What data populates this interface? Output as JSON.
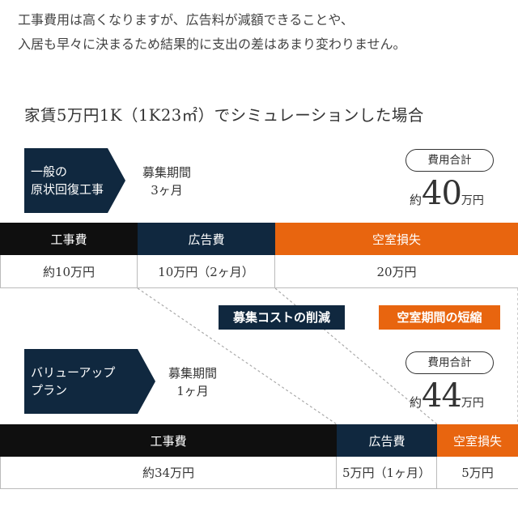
{
  "intro": {
    "line1": "工事費用は高くなりますが、広告料が減額できることや、",
    "line2": "入居も早々に決まるため結果的に支出の差はあまり変わりません。"
  },
  "simulation_title": "家賃5万円1K（1K23㎡）でシミュレーションした場合",
  "plan_general": {
    "label_line1": "一般の",
    "label_line2": "原状回復工事",
    "period_line1": "募集期間",
    "period_line2": "3ヶ月",
    "total_label": "費用合計",
    "total_prefix": "約",
    "total_value": "40",
    "total_unit": "万円",
    "columns": [
      {
        "header": "工事費",
        "value": "約10万円",
        "color": "#0f0f0f"
      },
      {
        "header": "広告費",
        "value": "10万円（2ヶ月）",
        "color": "#10283f"
      },
      {
        "header": "空室損失",
        "value": "20万円",
        "color": "#e8650f"
      }
    ]
  },
  "badges": {
    "recruit_cost": "募集コストの削減",
    "vacancy_period": "空室期間の短縮"
  },
  "plan_valueup": {
    "label_line1": "バリューアップ",
    "label_line2": "プラン",
    "period_line1": "募集期間",
    "period_line2": "1ヶ月",
    "total_label": "費用合計",
    "total_prefix": "約",
    "total_value": "44",
    "total_unit": "万円",
    "columns": [
      {
        "header": "工事費",
        "value": "約34万円",
        "color": "#0f0f0f"
      },
      {
        "header": "広告費",
        "value": "5万円（1ヶ月）",
        "color": "#10283f"
      },
      {
        "header": "空室損失",
        "value": "5万円",
        "color": "#e8650f"
      }
    ]
  }
}
